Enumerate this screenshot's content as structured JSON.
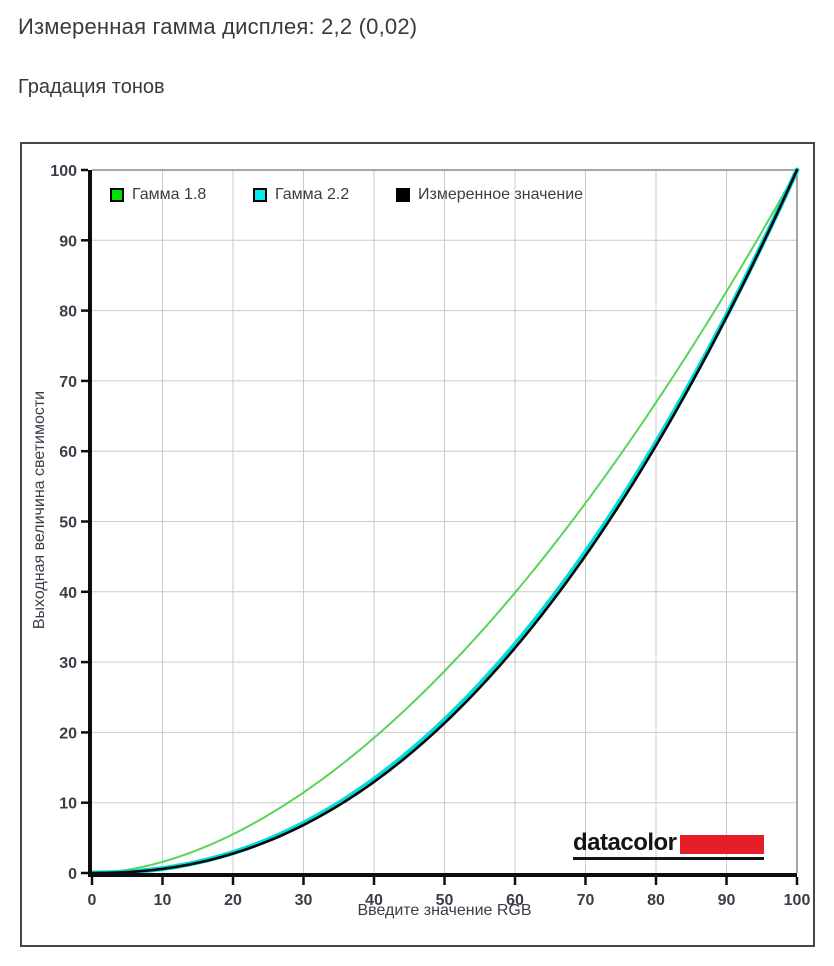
{
  "header": {
    "measured_gamma": "Измеренная гамма дисплея: 2,2 (0,02)",
    "section_title": "Градация тонов"
  },
  "chart_data": {
    "type": "line",
    "title": "",
    "xlabel": "Введите значение RGB",
    "ylabel": "Выходная величина светимости",
    "xlim": [
      0,
      100
    ],
    "ylim": [
      0,
      100
    ],
    "x_ticks": [
      0,
      10,
      20,
      30,
      40,
      50,
      60,
      70,
      80,
      90,
      100
    ],
    "y_ticks": [
      0,
      10,
      20,
      30,
      40,
      50,
      60,
      70,
      80,
      90,
      100
    ],
    "grid": true,
    "legend_position": "top-left-inside",
    "x": [
      0,
      10,
      20,
      30,
      40,
      50,
      60,
      70,
      80,
      90,
      100
    ],
    "series": [
      {
        "name": "Гамма 1.8",
        "gamma": 1.8,
        "swatch_color": "#00e100",
        "line_color": "#58d558",
        "line_width": 2,
        "values": [
          0,
          1.6,
          5.5,
          11.5,
          19.2,
          28.7,
          39.9,
          52.6,
          66.9,
          82.7,
          100
        ]
      },
      {
        "name": "Гамма 2.2",
        "gamma": 2.2,
        "swatch_color": "#00eeee",
        "line_color": "#00dcdc",
        "line_width": 5,
        "values": [
          0,
          0.6,
          2.9,
          7.1,
          13.3,
          21.8,
          32.5,
          45.6,
          61.2,
          79.3,
          100
        ]
      },
      {
        "name": "Измеренное значение",
        "gamma": 2.23,
        "swatch_color": "#000000",
        "line_color": "#0a0a0a",
        "line_width": 2.6,
        "values": [
          0,
          0.6,
          2.8,
          6.8,
          13.0,
          21.3,
          32.0,
          45.1,
          60.8,
          79.1,
          100
        ]
      }
    ],
    "colors": {
      "grid_line": "#cbcbcb",
      "plot_border": "#8a8a8a",
      "axis": "#0d0d0d",
      "tick_label": "#3d3d49"
    }
  },
  "logo": {
    "text": "datacolor",
    "red_color": "#e61e28"
  }
}
